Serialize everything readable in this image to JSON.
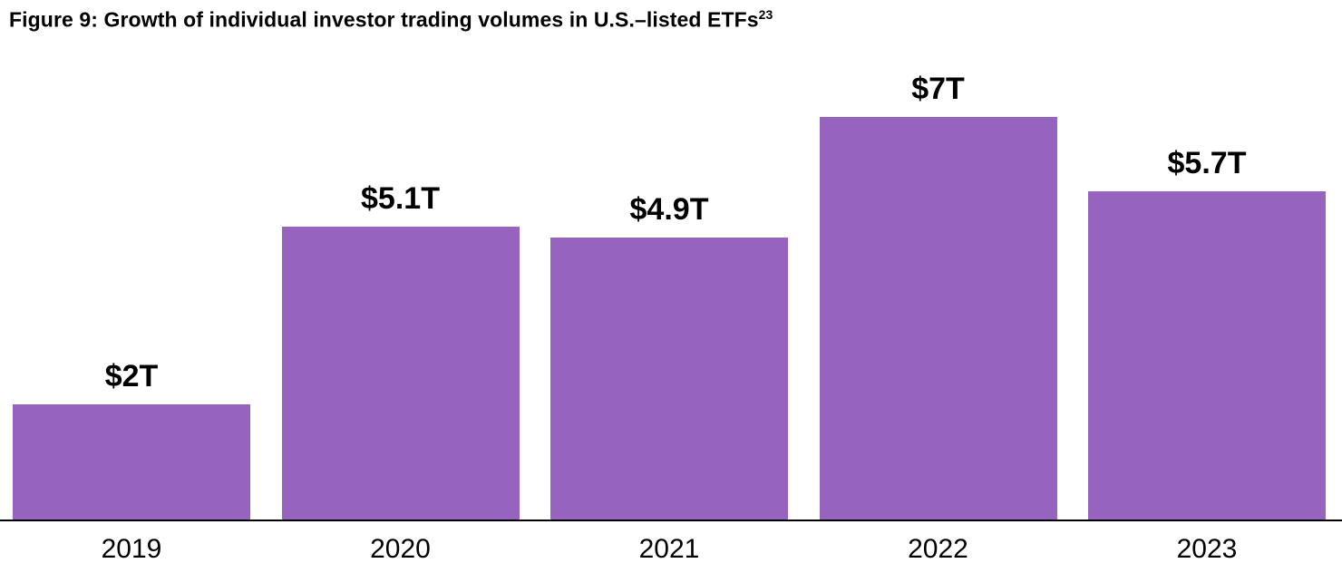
{
  "title": {
    "text": "Figure 9: Growth of individual investor trading volumes in U.S.–listed ETFs",
    "superscript": "23"
  },
  "chart_data": {
    "type": "bar",
    "categories": [
      "2019",
      "2020",
      "2021",
      "2022",
      "2023"
    ],
    "values": [
      2,
      5.1,
      4.9,
      7,
      5.7
    ],
    "value_labels": [
      "$2T",
      "$5.1T",
      "$4.9T",
      "$7T",
      "$5.7T"
    ],
    "title": "Figure 9: Growth of individual investor trading volumes in U.S.–listed ETFs (superscript 23)",
    "xlabel": "",
    "ylabel": "",
    "ylim": [
      0,
      7
    ],
    "grid": false,
    "legend": "none",
    "bar_color": "#9663BE"
  },
  "colors": {
    "bar": "#9663BE",
    "text": "#000000",
    "background": "#FFFFFF",
    "axis_line": "#000000"
  }
}
